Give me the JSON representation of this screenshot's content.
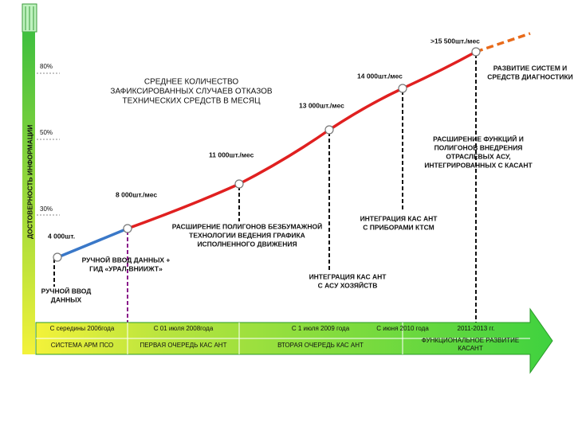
{
  "axis_label": "ДОСТОВЕРНОСТЬ ИНФОРМАЦИИ",
  "levels": [
    "80%",
    "50%",
    "30%"
  ],
  "title": [
    "СРЕДНЕЕ КОЛИЧЕСТВО",
    "ЗАФИКСИРОВАННЫХ СЛУЧАЕВ ОТКАЗОВ",
    "ТЕХНИЧЕСКИХ СРЕДСТВ В МЕСЯЦ"
  ],
  "points": [
    "4 000шт.",
    "8 000шт./мес",
    "11 000шт./мес",
    "13 000шт./мес",
    "14 000шт./мес",
    ">15 500шт./мес"
  ],
  "milestones": [
    [
      "РУЧНОЙ ВВОД",
      "ДАННЫХ"
    ],
    [
      "РУЧНОЙ ВВОД ДАННЫХ +",
      "ГИД «УРАЛ-ВНИИЖТ»"
    ],
    [
      "РАСШИРЕНИЕ ПОЛИГОНОВ БЕЗБУМАЖНОЙ",
      "ТЕХНОЛОГИИ ВЕДЕНИЯ ГРАФИКА",
      "ИСПОЛНЕННОГО ДВИЖЕНИЯ"
    ],
    [
      "ИНТЕГРАЦИЯ КАС АНТ",
      "С АСУ ХОЗЯЙСТВ"
    ],
    [
      "ИНТЕГРАЦИЯ КАС АНТ",
      "С ПРИБОРАМИ КТСМ"
    ],
    [
      "РАСШИРЕНИЕ ФУНКЦИЙ И",
      "ПОЛИГОНОВ ВНЕДРЕНИЯ",
      "ОТРАСЛЕВЫХ АСУ,",
      "ИНТЕГРИРОВАННЫХ С КАСАНТ"
    ],
    [
      "РАЗВИТИЕ СИСТЕМ И",
      "СРЕДСТВ ДИАГНОСТИКИ"
    ]
  ],
  "timeline": {
    "dates": [
      "С середины 2006года",
      "С 01 июля 2008года",
      "С 1 июля 2009 года",
      "С июня 2010 года",
      "2011-2013 гг."
    ],
    "phases": [
      [
        "СИСТЕМА АРМ ПСО"
      ],
      [
        "ПЕРВАЯ ОЧЕРЕДЬ КАС АНТ"
      ],
      [
        "ВТОРАЯ ОЧЕРЕДЬ КАС АНТ"
      ],
      [
        "ФУНКЦИОНАЛЬНОЕ РАЗВИТИЕ",
        "КАСАНТ"
      ]
    ]
  }
}
